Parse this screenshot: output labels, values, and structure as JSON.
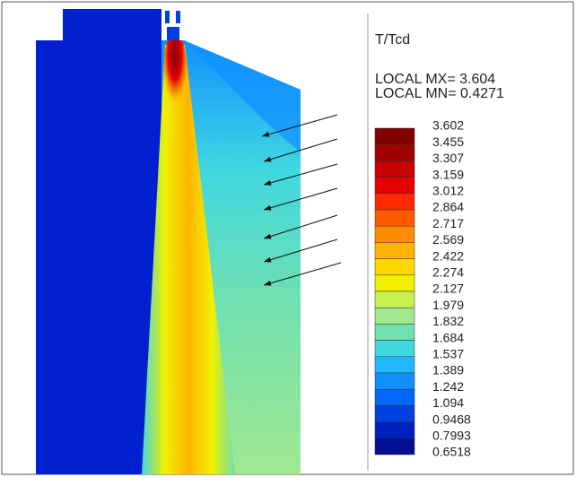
{
  "legend": {
    "title": "T/Tcd",
    "max_label": "LOCAL MX= 3.604",
    "min_label": "LOCAL MN= 0.4271",
    "levels": [
      {
        "value": 3.602,
        "color": "#800000"
      },
      {
        "value": 3.455,
        "color": "#a00000"
      },
      {
        "value": 3.307,
        "color": "#c80000"
      },
      {
        "value": 3.159,
        "color": "#e60000"
      },
      {
        "value": 3.012,
        "color": "#ff2a00"
      },
      {
        "value": 2.864,
        "color": "#ff5a00"
      },
      {
        "value": 2.717,
        "color": "#ff8c00"
      },
      {
        "value": 2.569,
        "color": "#ffb400"
      },
      {
        "value": 2.422,
        "color": "#ffd800"
      },
      {
        "value": 2.274,
        "color": "#f0f000"
      },
      {
        "value": 2.127,
        "color": "#c8f050"
      },
      {
        "value": 1.979,
        "color": "#a0e890"
      },
      {
        "value": 1.832,
        "color": "#70e0b0"
      },
      {
        "value": 1.684,
        "color": "#40d8e0"
      },
      {
        "value": 1.537,
        "color": "#20b8ff"
      },
      {
        "value": 1.389,
        "color": "#1090ff"
      },
      {
        "value": 1.242,
        "color": "#0068ff"
      },
      {
        "value": 1.094,
        "color": "#0040e0"
      },
      {
        "value": 0.9468,
        "color": "#0020c0"
      },
      {
        "value": 0.7993,
        "color": "#001090"
      },
      {
        "value": 0.6518,
        "color": "#000a70"
      }
    ]
  }
}
